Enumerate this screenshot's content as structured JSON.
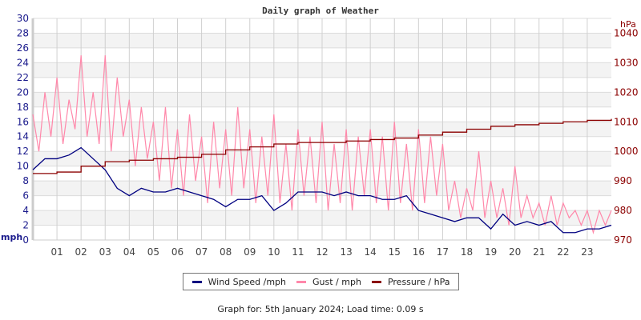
{
  "chart_data": {
    "type": "line",
    "title": "Daily graph of Weather",
    "x_tick_labels": [
      "01",
      "02",
      "03",
      "04",
      "05",
      "06",
      "07",
      "08",
      "09",
      "10",
      "11",
      "12",
      "13",
      "14",
      "15",
      "16",
      "17",
      "18",
      "19",
      "20",
      "21",
      "22",
      "23"
    ],
    "xlim": [
      0,
      24
    ],
    "left_axis": {
      "label": "mph",
      "ylim": [
        0,
        30
      ],
      "ticks": [
        0,
        2,
        4,
        6,
        8,
        10,
        12,
        14,
        16,
        18,
        20,
        22,
        24,
        26,
        28,
        30
      ]
    },
    "right_axis": {
      "label": "hPa",
      "ylim": [
        970,
        1045
      ],
      "ticks": [
        970,
        980,
        990,
        1000,
        1010,
        1020,
        1030,
        1040
      ]
    },
    "grid": true,
    "legend_placement": "bottom",
    "series": [
      {
        "name": "Wind Speed /mph",
        "axis": "left",
        "color": "#000080",
        "x_step_hours": 0.5,
        "values": [
          9.5,
          11,
          11,
          11.5,
          12.5,
          11,
          9.5,
          7,
          6,
          7,
          6.5,
          6.5,
          7,
          6.5,
          6,
          5.5,
          4.5,
          5.5,
          5.5,
          6,
          4,
          5,
          6.5,
          6.5,
          6.5,
          6,
          6.5,
          6,
          6,
          5.5,
          5.5,
          6,
          4,
          3.5,
          3,
          2.5,
          3,
          3,
          1.5,
          3.5,
          2,
          2.5,
          2,
          2.5,
          1,
          1,
          1.5,
          1.5,
          2
        ]
      },
      {
        "name": "Gust / mph",
        "axis": "left",
        "color": "#ff88aa",
        "x_step_hours": 0.25,
        "values": [
          17,
          12,
          20,
          14,
          22,
          13,
          19,
          15,
          25,
          14,
          20,
          13,
          25,
          12,
          22,
          14,
          19,
          10,
          18,
          11,
          16,
          8,
          18,
          7,
          15,
          6,
          17,
          8,
          14,
          5,
          16,
          7,
          15,
          6,
          18,
          7,
          15,
          5,
          14,
          6,
          17,
          5,
          13,
          4,
          15,
          6,
          14,
          5,
          16,
          4,
          13,
          5,
          15,
          4,
          14,
          6,
          15,
          5,
          14,
          4,
          16,
          5,
          13,
          4,
          15,
          5,
          14,
          6,
          13,
          4,
          8,
          3,
          7,
          4,
          12,
          3,
          8,
          3,
          7,
          2,
          10,
          3,
          6,
          3,
          5,
          2,
          6,
          2,
          5,
          3,
          4,
          2,
          4,
          1,
          4,
          2,
          4
        ]
      },
      {
        "name": "Pressure / hPa",
        "axis": "right",
        "color": "#8b0000",
        "x_step_hours": 1,
        "values": [
          992.5,
          993,
          995,
          996.5,
          997,
          997.5,
          998,
          999,
          1000.5,
          1001.5,
          1002.5,
          1003,
          1003,
          1003.5,
          1004,
          1004.5,
          1005.5,
          1006.5,
          1007.5,
          1008.5,
          1009,
          1009.5,
          1010,
          1010.5,
          1011
        ]
      }
    ]
  },
  "footer": "Graph for: 5th January 2024; Load time: 0.09 s"
}
